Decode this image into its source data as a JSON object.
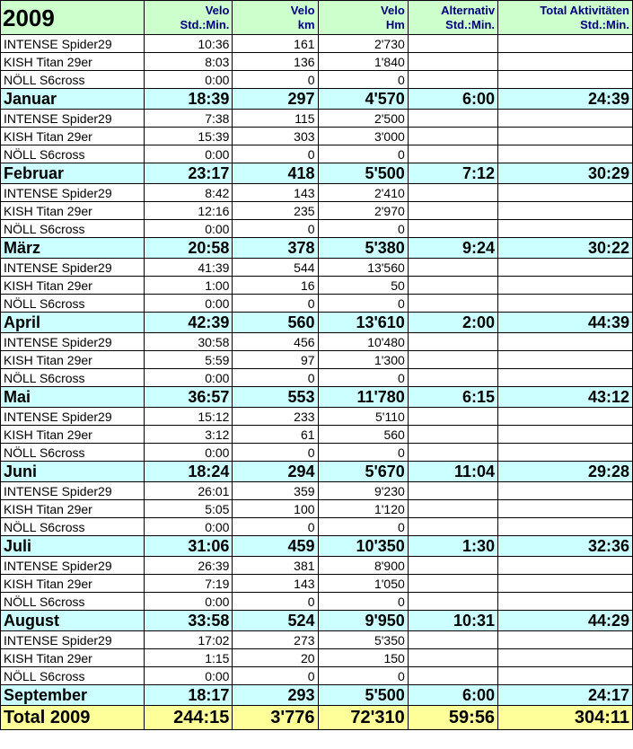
{
  "header": {
    "title": "2009",
    "col1_l1": "Velo",
    "col1_l2": "Std.:Min.",
    "col2_l1": "Velo",
    "col2_l2": "km",
    "col3_l1": "Velo",
    "col3_l2": "Hm",
    "col4_l1": "Alternativ",
    "col4_l2": "Std.:Min.",
    "col5_l1": "Total Aktivitäten",
    "col5_l2": "Std.:Min."
  },
  "rows": [
    {
      "type": "bike",
      "name": "INTENSE Spider29",
      "time": "10:36",
      "km": "161",
      "hm": "2'730",
      "alt": "",
      "total": ""
    },
    {
      "type": "bike",
      "name": "KISH Titan 29er",
      "time": "8:03",
      "km": "136",
      "hm": "1'840",
      "alt": "",
      "total": ""
    },
    {
      "type": "bike",
      "name": "NÖLL S6cross",
      "time": "0:00",
      "km": "0",
      "hm": "0",
      "alt": "",
      "total": ""
    },
    {
      "type": "month",
      "name": "Januar",
      "time": "18:39",
      "km": "297",
      "hm": "4'570",
      "alt": "6:00",
      "total": "24:39"
    },
    {
      "type": "bike",
      "name": "INTENSE Spider29",
      "time": "7:38",
      "km": "115",
      "hm": "2'500",
      "alt": "",
      "total": ""
    },
    {
      "type": "bike",
      "name": "KISH Titan 29er",
      "time": "15:39",
      "km": "303",
      "hm": "3'000",
      "alt": "",
      "total": ""
    },
    {
      "type": "bike",
      "name": "NÖLL S6cross",
      "time": "0:00",
      "km": "0",
      "hm": "0",
      "alt": "",
      "total": ""
    },
    {
      "type": "month",
      "name": "Februar",
      "time": "23:17",
      "km": "418",
      "hm": "5'500",
      "alt": "7:12",
      "total": "30:29"
    },
    {
      "type": "bike",
      "name": "INTENSE Spider29",
      "time": "8:42",
      "km": "143",
      "hm": "2'410",
      "alt": "",
      "total": ""
    },
    {
      "type": "bike",
      "name": "KISH Titan 29er",
      "time": "12:16",
      "km": "235",
      "hm": "2'970",
      "alt": "",
      "total": ""
    },
    {
      "type": "bike",
      "name": "NÖLL S6cross",
      "time": "0:00",
      "km": "0",
      "hm": "0",
      "alt": "",
      "total": ""
    },
    {
      "type": "month",
      "name": "März",
      "time": "20:58",
      "km": "378",
      "hm": "5'380",
      "alt": "9:24",
      "total": "30:22"
    },
    {
      "type": "bike",
      "name": "INTENSE Spider29",
      "time": "41:39",
      "km": "544",
      "hm": "13'560",
      "alt": "",
      "total": ""
    },
    {
      "type": "bike",
      "name": "KISH Titan 29er",
      "time": "1:00",
      "km": "16",
      "hm": "50",
      "alt": "",
      "total": ""
    },
    {
      "type": "bike",
      "name": "NÖLL S6cross",
      "time": "0:00",
      "km": "0",
      "hm": "0",
      "alt": "",
      "total": ""
    },
    {
      "type": "month",
      "name": "April",
      "time": "42:39",
      "km": "560",
      "hm": "13'610",
      "alt": "2:00",
      "total": "44:39"
    },
    {
      "type": "bike",
      "name": "INTENSE Spider29",
      "time": "30:58",
      "km": "456",
      "hm": "10'480",
      "alt": "",
      "total": ""
    },
    {
      "type": "bike",
      "name": "KISH Titan 29er",
      "time": "5:59",
      "km": "97",
      "hm": "1'300",
      "alt": "",
      "total": ""
    },
    {
      "type": "bike",
      "name": "NÖLL S6cross",
      "time": "0:00",
      "km": "0",
      "hm": "0",
      "alt": "",
      "total": ""
    },
    {
      "type": "month",
      "name": "Mai",
      "time": "36:57",
      "km": "553",
      "hm": "11'780",
      "alt": "6:15",
      "total": "43:12"
    },
    {
      "type": "bike",
      "name": "INTENSE Spider29",
      "time": "15:12",
      "km": "233",
      "hm": "5'110",
      "alt": "",
      "total": ""
    },
    {
      "type": "bike",
      "name": "KISH Titan 29er",
      "time": "3:12",
      "km": "61",
      "hm": "560",
      "alt": "",
      "total": ""
    },
    {
      "type": "bike",
      "name": "NÖLL S6cross",
      "time": "0:00",
      "km": "0",
      "hm": "0",
      "alt": "",
      "total": ""
    },
    {
      "type": "month",
      "name": "Juni",
      "time": "18:24",
      "km": "294",
      "hm": "5'670",
      "alt": "11:04",
      "total": "29:28"
    },
    {
      "type": "bike",
      "name": "INTENSE Spider29",
      "time": "26:01",
      "km": "359",
      "hm": "9'230",
      "alt": "",
      "total": ""
    },
    {
      "type": "bike",
      "name": "KISH Titan 29er",
      "time": "5:05",
      "km": "100",
      "hm": "1'120",
      "alt": "",
      "total": ""
    },
    {
      "type": "bike",
      "name": "NÖLL S6cross",
      "time": "0:00",
      "km": "0",
      "hm": "0",
      "alt": "",
      "total": ""
    },
    {
      "type": "month",
      "name": "Juli",
      "time": "31:06",
      "km": "459",
      "hm": "10'350",
      "alt": "1:30",
      "total": "32:36"
    },
    {
      "type": "bike",
      "name": "INTENSE Spider29",
      "time": "26:39",
      "km": "381",
      "hm": "8'900",
      "alt": "",
      "total": ""
    },
    {
      "type": "bike",
      "name": "KISH Titan 29er",
      "time": "7:19",
      "km": "143",
      "hm": "1'050",
      "alt": "",
      "total": ""
    },
    {
      "type": "bike",
      "name": "NÖLL S6cross",
      "time": "0:00",
      "km": "0",
      "hm": "0",
      "alt": "",
      "total": ""
    },
    {
      "type": "month",
      "name": "August",
      "time": "33:58",
      "km": "524",
      "hm": "9'950",
      "alt": "10:31",
      "total": "44:29"
    },
    {
      "type": "bike",
      "name": "INTENSE Spider29",
      "time": "17:02",
      "km": "273",
      "hm": "5'350",
      "alt": "",
      "total": ""
    },
    {
      "type": "bike",
      "name": "KISH Titan 29er",
      "time": "1:15",
      "km": "20",
      "hm": "150",
      "alt": "",
      "total": ""
    },
    {
      "type": "bike",
      "name": "NÖLL S6cross",
      "time": "0:00",
      "km": "0",
      "hm": "0",
      "alt": "",
      "total": ""
    },
    {
      "type": "month",
      "name": "September",
      "time": "18:17",
      "km": "293",
      "hm": "5'500",
      "alt": "6:00",
      "total": "24:17"
    }
  ],
  "totals": {
    "name": "Total 2009",
    "time": "244:15",
    "km": "3'776",
    "hm": "72'310",
    "alt": "59:56",
    "total": "304:11"
  }
}
